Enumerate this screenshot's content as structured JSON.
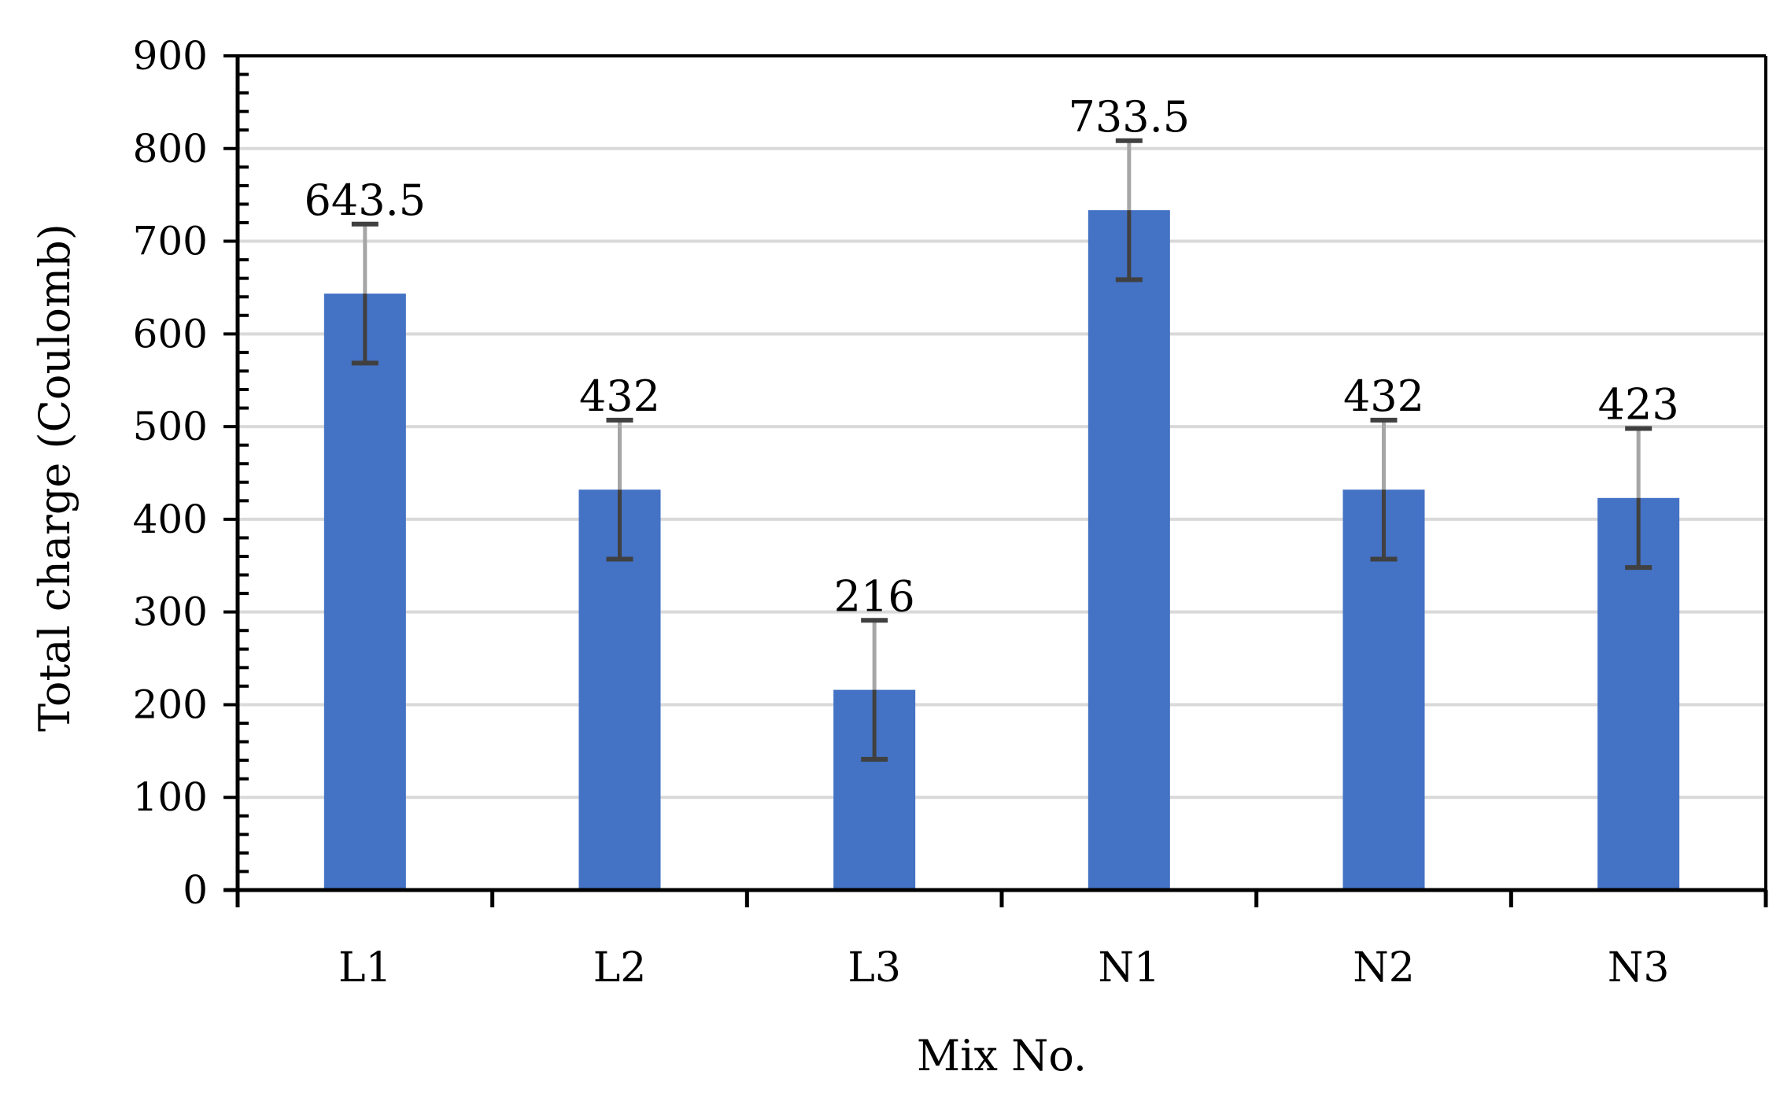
{
  "chart_data": {
    "type": "bar",
    "title": "",
    "xlabel": "Mix No.",
    "ylabel": "Total charge (Coulomb)",
    "categories": [
      "L1",
      "L2",
      "L3",
      "N1",
      "N2",
      "N3"
    ],
    "values": [
      643.5,
      432,
      216,
      733.5,
      432,
      423
    ],
    "data_labels": [
      "643.5",
      "432",
      "216",
      "733.5",
      "432",
      "423"
    ],
    "error": [
      75,
      75,
      75,
      75,
      75,
      75
    ],
    "ylim": [
      0,
      900
    ],
    "yticks": [
      0,
      100,
      200,
      300,
      400,
      500,
      600,
      700,
      800,
      900
    ],
    "ytick_labels": [
      "0",
      "100",
      "200",
      "300",
      "400",
      "500",
      "600",
      "700",
      "800",
      "900"
    ],
    "grid": true,
    "legend": "none",
    "colors": {
      "bar": "#4472C4",
      "grid": "#D9D9D9",
      "axis": "#000000",
      "error_upper": "#A6A6A6",
      "error_lower": "#404040"
    }
  }
}
